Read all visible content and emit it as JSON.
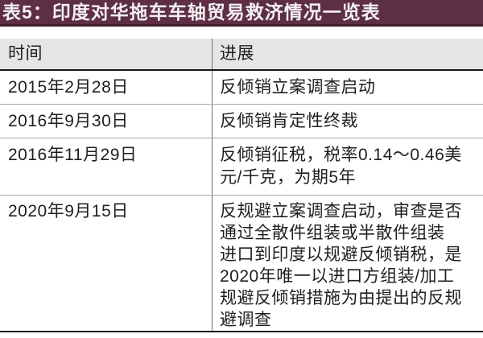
{
  "title": "表5：印度对华拖车车轴贸易救济情况一览表",
  "table": {
    "headers": {
      "time": "时间",
      "progress": "进展"
    },
    "rows": [
      {
        "time": "2015年2月28日",
        "progress": "反倾销立案调查启动"
      },
      {
        "time": "2016年9月30日",
        "progress": "反倾销肯定性终裁"
      },
      {
        "time": "2016年11月29日",
        "progress": "反倾销征税，税率0.14～0.46美\n元/千克，为期5年"
      },
      {
        "time": "2020年9月15日",
        "progress": "反规避立案调查启动，审查是否\n通过全散件组装或半散件组装\n进口到印度以规避反倾销税，是\n2020年唯一以进口方组装/加工\n规避反倾销措施为由提出的反规\n避调查"
      }
    ]
  },
  "colors": {
    "title_bar_bg": "#5e2f43",
    "title_bar_edge": "#3f1f2d",
    "title_text": "#f3eff2",
    "header_bg": "#e7e5e3",
    "body_text": "#1f1f1f",
    "thick_rule": "#1a1a1a",
    "thin_rule": "#a8a8a8",
    "column_divider": "#6f6f6f"
  }
}
